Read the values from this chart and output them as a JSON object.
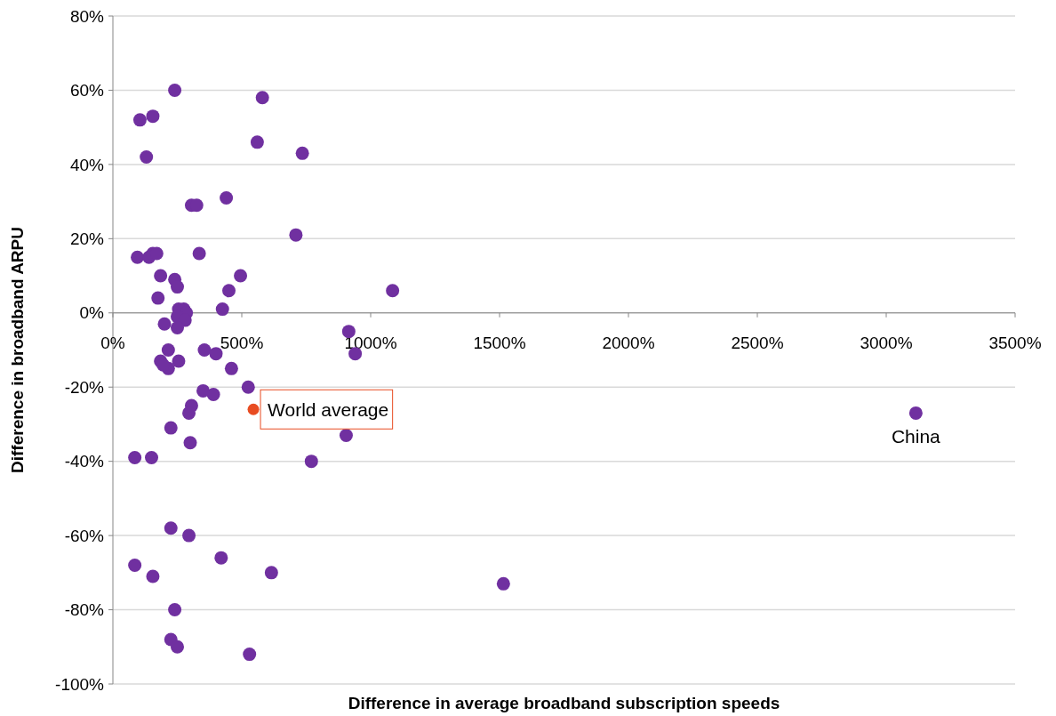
{
  "chart_data": {
    "type": "scatter",
    "xlabel": "Difference in average broadband subscription speeds",
    "ylabel": "Difference in broadband ARPU",
    "xlim": [
      0,
      3500
    ],
    "ylim": [
      -100,
      80
    ],
    "xticks": [
      {
        "value": 0,
        "label": "0%"
      },
      {
        "value": 500,
        "label": "500%"
      },
      {
        "value": 1000,
        "label": "1000%"
      },
      {
        "value": 1500,
        "label": "1500%"
      },
      {
        "value": 2000,
        "label": "2000%"
      },
      {
        "value": 2500,
        "label": "2500%"
      },
      {
        "value": 3000,
        "label": "3000%"
      },
      {
        "value": 3500,
        "label": "3500%"
      }
    ],
    "yticks": [
      {
        "value": -100,
        "label": "-100%"
      },
      {
        "value": -80,
        "label": "-80%"
      },
      {
        "value": -60,
        "label": "-60%"
      },
      {
        "value": -40,
        "label": "-40%"
      },
      {
        "value": -20,
        "label": "-20%"
      },
      {
        "value": 0,
        "label": "0%"
      },
      {
        "value": 20,
        "label": "20%"
      },
      {
        "value": 40,
        "label": "40%"
      },
      {
        "value": 60,
        "label": "60%"
      },
      {
        "value": 80,
        "label": "80%"
      }
    ],
    "grid": "y",
    "marker": "circle",
    "series": [
      {
        "color": "#7030a0",
        "x": [
          240,
          580,
          105,
          155,
          130,
          560,
          735,
          305,
          325,
          440,
          710,
          95,
          140,
          155,
          170,
          335,
          185,
          240,
          250,
          175,
          495,
          450,
          425,
          1085,
          255,
          275,
          285,
          250,
          280,
          250,
          200,
          915,
          940,
          215,
          355,
          400,
          185,
          255,
          215,
          195,
          460,
          525,
          350,
          390,
          305,
          295,
          225,
          300,
          905,
          85,
          150,
          770,
          225,
          295,
          420,
          615,
          85,
          155,
          240,
          225,
          250,
          530,
          1515,
          3115
        ],
        "values": [
          60,
          58,
          52,
          53,
          42,
          46,
          43,
          29,
          29,
          31,
          21,
          15,
          15,
          16,
          16,
          16,
          10,
          9,
          7,
          4,
          10,
          6,
          1,
          6,
          1,
          1,
          0,
          -1,
          -2,
          -4,
          -3,
          -5,
          -11,
          -10,
          -10,
          -11,
          -13,
          -13,
          -15,
          -14,
          -15,
          -20,
          -21,
          -22,
          -25,
          -27,
          -31,
          -35,
          -33,
          -39,
          -39,
          -40,
          -58,
          -60,
          -66,
          -70,
          -68,
          -71,
          -80,
          -88,
          -90,
          -92,
          -73,
          -27
        ]
      },
      {
        "name": "World average",
        "color": "#e84c22",
        "x": [
          545
        ],
        "values": [
          -26
        ]
      }
    ],
    "annotations": [
      {
        "text": "China",
        "x": 3115,
        "y": -27
      }
    ]
  }
}
